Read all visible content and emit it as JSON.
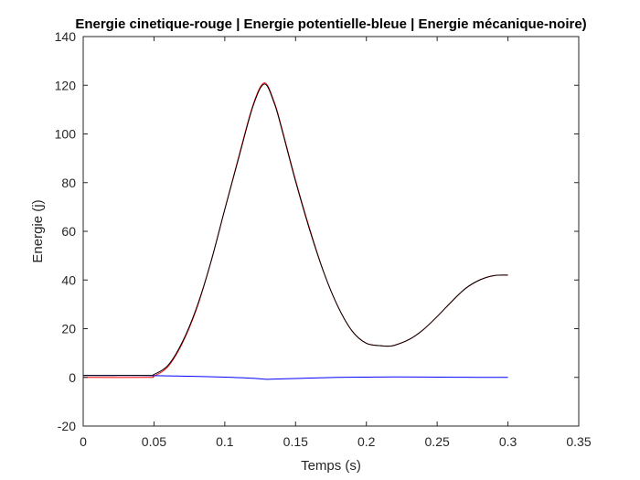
{
  "chart_data": {
    "type": "line",
    "title": "Energie cinetique-rouge | Energie potentielle-bleue | Energie mécanique-noire)",
    "xlabel": "Temps (s)",
    "ylabel": "Energie (j)",
    "xlim": [
      0,
      0.35
    ],
    "ylim": [
      -20,
      140
    ],
    "xticks": [
      0,
      0.05,
      0.1,
      0.15,
      0.2,
      0.25,
      0.3,
      0.35
    ],
    "xtick_labels": [
      "0",
      "0.05",
      "0.1",
      "0.15",
      "0.2",
      "0.25",
      "0.3",
      "0.35"
    ],
    "yticks": [
      -20,
      0,
      20,
      40,
      60,
      80,
      100,
      120,
      140
    ],
    "ytick_labels": [
      "-20",
      "0",
      "20",
      "40",
      "60",
      "80",
      "100",
      "120",
      "140"
    ],
    "grid": false,
    "legend": "none",
    "series": [
      {
        "color": "#ff0000",
        "x": [
          0,
          0.045,
          0.05,
          0.06,
          0.07,
          0.08,
          0.09,
          0.1,
          0.11,
          0.12,
          0.128,
          0.135,
          0.14,
          0.15,
          0.16,
          0.17,
          0.18,
          0.19,
          0.2,
          0.21,
          0.215,
          0.22,
          0.23,
          0.24,
          0.25,
          0.26,
          0.27,
          0.28,
          0.29,
          0.3
        ],
        "y": [
          0,
          0,
          0.5,
          4.5,
          14,
          28,
          47,
          69,
          91,
          112,
          121,
          113,
          103,
          81,
          61,
          43,
          29,
          19,
          14,
          13,
          12.8,
          13.2,
          15.5,
          19.5,
          25,
          31,
          36.5,
          40,
          41.8,
          42
        ]
      },
      {
        "color": "#0000ff",
        "x": [
          0,
          0.04,
          0.05,
          0.07,
          0.1,
          0.12,
          0.13,
          0.14,
          0.16,
          0.18,
          0.2,
          0.22,
          0.25,
          0.28,
          0.3
        ],
        "y": [
          0.8,
          0.8,
          0.7,
          0.5,
          0.1,
          -0.4,
          -0.8,
          -0.6,
          -0.3,
          0,
          0.1,
          0.2,
          0.1,
          0,
          0
        ]
      },
      {
        "color": "#000000",
        "x": [
          0,
          0.045,
          0.05,
          0.06,
          0.07,
          0.08,
          0.09,
          0.1,
          0.11,
          0.12,
          0.128,
          0.135,
          0.14,
          0.15,
          0.16,
          0.17,
          0.18,
          0.19,
          0.2,
          0.21,
          0.215,
          0.22,
          0.23,
          0.24,
          0.25,
          0.26,
          0.27,
          0.28,
          0.29,
          0.3
        ],
        "y": [
          0.8,
          0.8,
          1.2,
          5,
          14.5,
          28.5,
          47,
          69,
          90.5,
          111.5,
          120.5,
          112.5,
          102.5,
          80.5,
          60.5,
          43,
          29,
          19,
          14,
          13,
          12.8,
          13.2,
          15.5,
          19.5,
          25,
          31,
          36.5,
          40,
          41.8,
          42
        ]
      }
    ]
  }
}
